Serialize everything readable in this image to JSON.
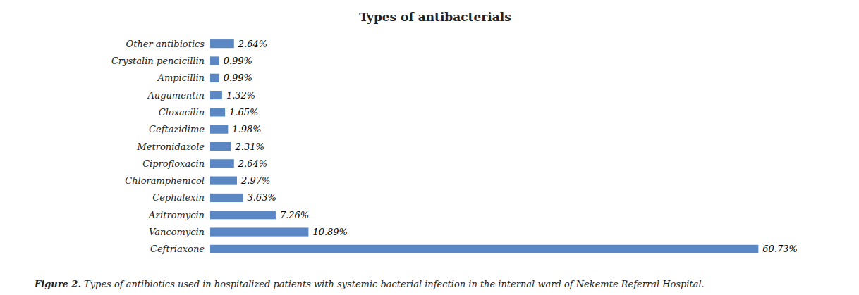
{
  "chart_data": {
    "type": "bar",
    "orientation": "horizontal",
    "title": "Types of antibacterials",
    "categories": [
      "Ceftriaxone",
      "Vancomycin",
      "Azitromycin",
      "Cephalexin",
      "Chloramphenicol",
      "Ciprofloxacin",
      "Metronidazole",
      "Ceftazidime",
      "Cloxacilin",
      "Augumentin",
      "Ampicillin",
      "Crystalin pencicillin",
      "Other antibiotics"
    ],
    "values": [
      60.73,
      10.89,
      7.26,
      3.63,
      2.97,
      2.64,
      2.31,
      1.98,
      1.65,
      1.32,
      0.99,
      0.99,
      2.64
    ],
    "value_labels": [
      "60.73%",
      "10.89%",
      "7.26%",
      "3.63%",
      "2.97%",
      "2.64%",
      "2.31%",
      "1.98%",
      "1.65%",
      "1.32%",
      "0.99%",
      "0.99%",
      "2.64%"
    ],
    "color": "#5b87c5",
    "xlim": [
      0,
      70.0
    ],
    "data_labels": true,
    "tick_labels": "y",
    "grid": false,
    "annotations": [
      "Figure 2.",
      " Types of antibiotics used in hospitalized patients with systemic bacterial infection in the internal ward of Nekemte Referral Hospital."
    ]
  }
}
